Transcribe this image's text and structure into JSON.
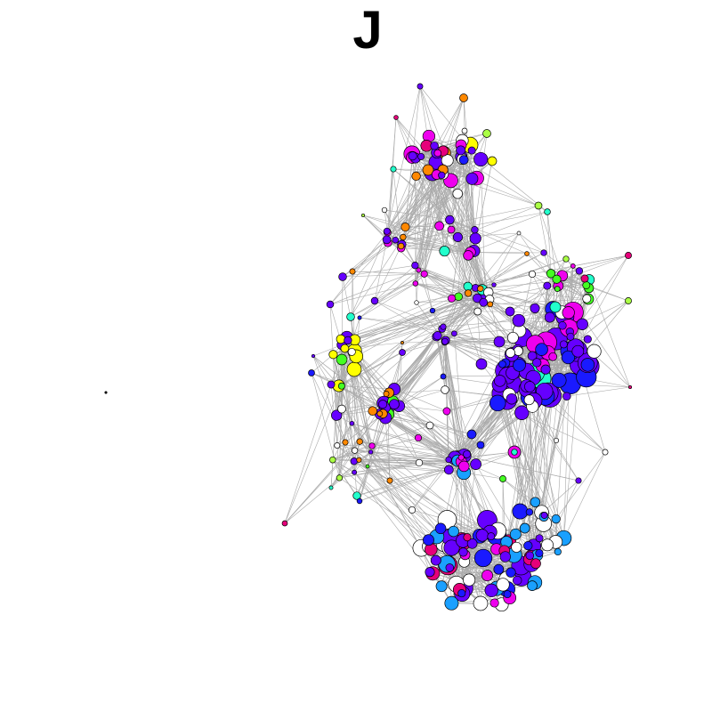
{
  "title": "J",
  "network": {
    "edge_color": "#aaaaaa",
    "node_stroke": "#000000",
    "palette": {
      "violet": "#6600ff",
      "blue": "#1a1aff",
      "azure": "#1aa0ff",
      "magenta": "#ee00ee",
      "crimson": "#e6007a",
      "orange": "#ff8800",
      "yellow": "#ffff00",
      "lime": "#44ff22",
      "chartreuse": "#aaff44",
      "aqua": "#22ffcc",
      "white": "#ffffff",
      "black": "#000000"
    }
  }
}
